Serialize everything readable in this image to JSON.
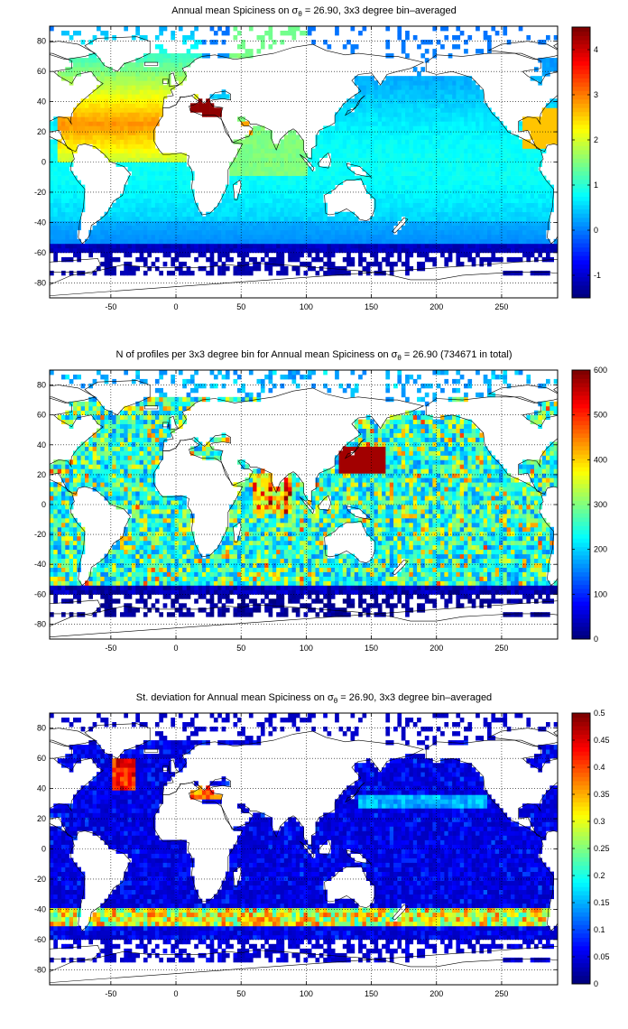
{
  "panels": [
    {
      "title_pre": "Annual mean Spiciness on σ",
      "title_sub": "θ",
      "title_post": " = 26.90, 3x3 degree bin–averaged",
      "x_ticks": [
        "-50",
        "0",
        "50",
        "100",
        "150",
        "200",
        "250"
      ],
      "y_ticks": [
        "80",
        "60",
        "40",
        "20",
        "0",
        "-20",
        "-40",
        "-60",
        "-80"
      ],
      "colorbar_ticks": [
        "4",
        "3",
        "2",
        "1",
        "0",
        "-1"
      ],
      "field": "spiciness"
    },
    {
      "title_pre": "N of profiles per 3x3 degree bin for Annual mean Spiciness on σ",
      "title_sub": "θ",
      "title_post": " = 26.90 (734671 in total)",
      "x_ticks": [
        "-50",
        "0",
        "50",
        "100",
        "150",
        "200",
        "250"
      ],
      "y_ticks": [
        "80",
        "60",
        "40",
        "20",
        "0",
        "-20",
        "-40",
        "-60",
        "-80"
      ],
      "colorbar_ticks": [
        "600",
        "500",
        "400",
        "300",
        "200",
        "100",
        "0"
      ],
      "field": "count"
    },
    {
      "title_pre": "St. deviation for Annual mean Spiciness on σ",
      "title_sub": "θ",
      "title_post": " = 26.90, 3x3 degree bin–averaged",
      "x_ticks": [
        "-50",
        "0",
        "50",
        "100",
        "150",
        "200",
        "250"
      ],
      "y_ticks": [
        "80",
        "60",
        "40",
        "20",
        "0",
        "-20",
        "-40",
        "-60",
        "-80"
      ],
      "colorbar_ticks": [
        "0.5",
        "0.45",
        "0.4",
        "0.35",
        "0.3",
        "0.25",
        "0.2",
        "0.15",
        "0.1",
        "0.05",
        "0"
      ],
      "field": "std"
    }
  ],
  "map_axes": {
    "xlim": [
      -97,
      293
    ],
    "ylim": [
      -90,
      90
    ],
    "colormap": "jet"
  },
  "colorbar_ranges": [
    [
      -1.5,
      4.5
    ],
    [
      0,
      600
    ],
    [
      0,
      0.5
    ]
  ],
  "colors": {
    "land": "#ffffff",
    "coast": "#000000"
  }
}
